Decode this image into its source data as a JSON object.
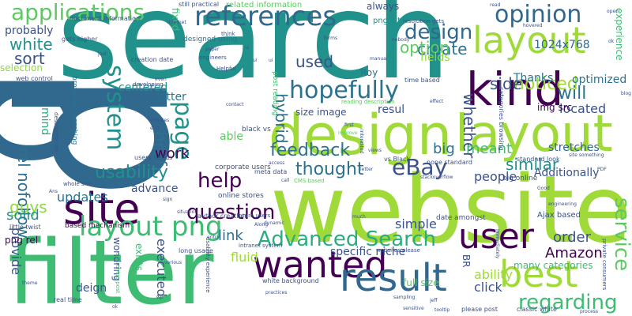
{
  "palette": {
    "dark_purple": "#440154",
    "indigo": "#3b528b",
    "blue": "#31688e",
    "steel": "#2c728e",
    "teal": "#21918c",
    "sea_green": "#28ae80",
    "green": "#3fbc73",
    "lime": "#90d743",
    "yellow_green": "#a0da39",
    "light_green": "#5ec962"
  },
  "words": [
    {
      "text": "p"
    },
    {
      "text": "p"
    },
    {
      "text": "search"
    },
    {
      "text": "website"
    },
    {
      "text": "filter"
    },
    {
      "text": "design"
    },
    {
      "text": "layout"
    },
    {
      "text": "layout"
    },
    {
      "text": "site"
    },
    {
      "text": "kind"
    },
    {
      "text": "wanted"
    },
    {
      "text": "result"
    },
    {
      "text": "best"
    },
    {
      "text": "user"
    },
    {
      "text": "layout png"
    },
    {
      "text": "references"
    },
    {
      "text": "opinion"
    },
    {
      "text": "applications"
    },
    {
      "text": "design"
    },
    {
      "text": "hopefully"
    },
    {
      "text": "system"
    },
    {
      "text": "page"
    },
    {
      "text": "eBay"
    },
    {
      "text": "Advanced Search"
    },
    {
      "text": "question"
    },
    {
      "text": "service"
    },
    {
      "text": "regarding"
    },
    {
      "text": "help"
    },
    {
      "text": "feedback"
    },
    {
      "text": "thought"
    },
    {
      "text": "usability"
    },
    {
      "text": "similar"
    },
    {
      "text": "noticed"
    },
    {
      "text": "href"
    },
    {
      "text": "white"
    },
    {
      "text": "create"
    },
    {
      "text": "option"
    },
    {
      "text": "sort"
    },
    {
      "text": "used"
    },
    {
      "text": "whether"
    },
    {
      "text": "will"
    },
    {
      "text": "side"
    },
    {
      "text": "rel nofollow"
    },
    {
      "text": "hybrid"
    },
    {
      "text": "work"
    },
    {
      "text": "guys"
    },
    {
      "text": "solid"
    },
    {
      "text": "link"
    },
    {
      "text": "big"
    },
    {
      "text": "meant"
    },
    {
      "text": "order"
    },
    {
      "text": "Amazon"
    },
    {
      "text": "provide"
    },
    {
      "text": "executed"
    },
    {
      "text": "fluid"
    },
    {
      "text": "located"
    },
    {
      "text": "optimized"
    },
    {
      "text": "Additionally"
    },
    {
      "text": "simple"
    },
    {
      "text": "ability"
    },
    {
      "text": "updates"
    },
    {
      "text": "advance"
    },
    {
      "text": "people"
    },
    {
      "text": "Thanks"
    },
    {
      "text": "stretches"
    },
    {
      "text": "mind"
    },
    {
      "text": "able"
    },
    {
      "text": "deign"
    },
    {
      "text": "click"
    },
    {
      "text": "centered"
    },
    {
      "text": "latter"
    },
    {
      "text": "fields"
    },
    {
      "text": "1024x768"
    },
    {
      "text": "selection"
    },
    {
      "text": "probably"
    },
    {
      "text": "always"
    },
    {
      "text": "png alt"
    },
    {
      "text": "resul"
    },
    {
      "text": "specific niche"
    },
    {
      "text": "exists"
    },
    {
      "text": "wondring"
    },
    {
      "text": "img src"
    },
    {
      "text": "experience"
    },
    {
      "text": "Roy"
    },
    {
      "text": "full size"
    },
    {
      "text": "size image"
    },
    {
      "text": "png rel"
    },
    {
      "text": "fixed"
    },
    {
      "text": "many categories"
    },
    {
      "text": "Ajax based"
    },
    {
      "text": "BR"
    },
    {
      "text": "related information"
    },
    {
      "text": "designed using"
    },
    {
      "text": "post reading"
    },
    {
      "text": "browsing searching"
    },
    {
      "text": "corporate users"
    },
    {
      "text": "users needs"
    },
    {
      "text": "meta data"
    },
    {
      "text": "online stores"
    },
    {
      "text": "big online"
    },
    {
      "text": "standard look"
    },
    {
      "text": "none standard"
    },
    {
      "text": "date amongst"
    },
    {
      "text": "based mechanism"
    },
    {
      "text": "little twist"
    },
    {
      "text": "web control"
    },
    {
      "text": "creation date"
    },
    {
      "text": "document information"
    },
    {
      "text": "still practical"
    },
    {
      "text": "gets higher"
    },
    {
      "text": "resolution gets"
    },
    {
      "text": "categories browsing"
    },
    {
      "text": "time based"
    },
    {
      "text": "black vs"
    },
    {
      "text": "vs Black"
    },
    {
      "text": "white background"
    },
    {
      "text": "classic white"
    },
    {
      "text": "please post"
    },
    {
      "text": "real time"
    },
    {
      "text": "author creation"
    },
    {
      "text": "future users"
    },
    {
      "text": "long usage"
    },
    {
      "text": "intranet system"
    },
    {
      "text": "websites please"
    },
    {
      "text": "usability experience"
    },
    {
      "text": "searching post"
    },
    {
      "text": "whole site"
    },
    {
      "text": "private consumers"
    },
    {
      "text": "description etc"
    },
    {
      "text": "reading description"
    },
    {
      "text": "CMS based"
    },
    {
      "text": "developing"
    },
    {
      "text": "Helpful"
    },
    {
      "text": "engineers"
    },
    {
      "text": "nobody"
    },
    {
      "text": "forms"
    },
    {
      "text": "think"
    },
    {
      "text": "minutes"
    },
    {
      "text": "even"
    },
    {
      "text": "first"
    },
    {
      "text": "improve"
    },
    {
      "text": "views"
    },
    {
      "text": "letter"
    },
    {
      "text": "access"
    },
    {
      "text": "call"
    },
    {
      "text": "hovered"
    },
    {
      "text": "open"
    },
    {
      "text": "stackoverflow"
    },
    {
      "text": "immediately"
    },
    {
      "text": "dynamic"
    },
    {
      "text": "practices"
    },
    {
      "text": "sampling"
    },
    {
      "text": "tooltip"
    },
    {
      "text": "interested"
    },
    {
      "text": "much"
    },
    {
      "text": "Along"
    },
    {
      "text": "theme"
    },
    {
      "text": "various"
    },
    {
      "text": "joel"
    },
    {
      "text": "end"
    },
    {
      "text": "internet"
    },
    {
      "text": "sign"
    },
    {
      "text": "situation"
    },
    {
      "text": "Good"
    },
    {
      "text": "process"
    },
    {
      "text": "PDF"
    },
    {
      "text": "blog"
    },
    {
      "text": "site something"
    },
    {
      "text": "effect"
    },
    {
      "text": "ui"
    },
    {
      "text": "manual"
    },
    {
      "text": "contact"
    },
    {
      "text": "entry"
    },
    {
      "text": "jeff"
    },
    {
      "text": "engineering"
    },
    {
      "text": "sensitive"
    },
    {
      "text": "Ans"
    },
    {
      "text": "ok"
    },
    {
      "text": "ui"
    },
    {
      "text": "wp"
    },
    {
      "text": "ui"
    },
    {
      "text": "paper"
    },
    {
      "text": "read"
    },
    {
      "text": "ok"
    }
  ]
}
